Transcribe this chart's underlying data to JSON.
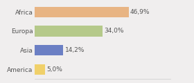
{
  "categories": [
    "Africa",
    "Europa",
    "Asia",
    "America"
  ],
  "values": [
    46.9,
    34.0,
    14.2,
    5.0
  ],
  "labels": [
    "46,9%",
    "34,0%",
    "14,2%",
    "5,0%"
  ],
  "bar_colors": [
    "#e8b483",
    "#b5c98a",
    "#6b7fc4",
    "#f0d06a"
  ],
  "background_color": "#f0eeee",
  "xlim": [
    0,
    68
  ],
  "label_fontsize": 6.5,
  "tick_fontsize": 6.5,
  "bar_height": 0.55
}
